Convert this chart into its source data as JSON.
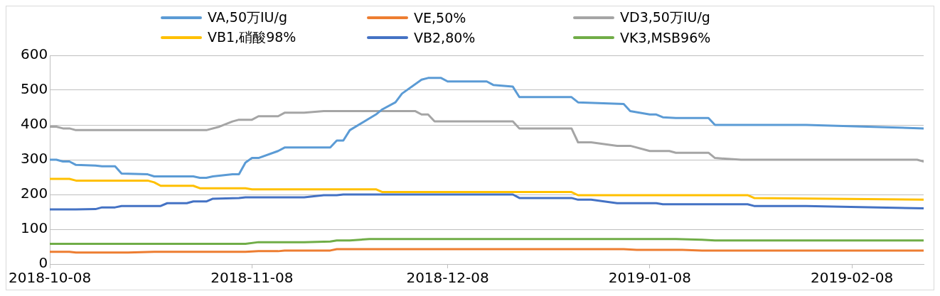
{
  "chart_data": {
    "type": "line",
    "xlim": [
      "2018-10-08",
      "2019-02-19"
    ],
    "xticks": [
      "2018-10-08",
      "2018-11-08",
      "2018-12-08",
      "2019-01-08",
      "2019-02-08"
    ],
    "ylim": [
      0,
      600
    ],
    "yticks": [
      0,
      100,
      200,
      300,
      400,
      500,
      600
    ],
    "grid": "y",
    "legend": "top",
    "marker": "none",
    "line_style": "solid",
    "series": [
      {
        "name": "VA,50万IU/g",
        "color": "#5b9bd5",
        "x": [
          "2018-10-08",
          "2018-10-09",
          "2018-10-10",
          "2018-10-11",
          "2018-10-12",
          "2018-10-15",
          "2018-10-16",
          "2018-10-18",
          "2018-10-19",
          "2018-10-23",
          "2018-10-24",
          "2018-10-30",
          "2018-10-31",
          "2018-11-01",
          "2018-11-02",
          "2018-11-05",
          "2018-11-06",
          "2018-11-07",
          "2018-11-08",
          "2018-11-09",
          "2018-11-12",
          "2018-11-13",
          "2018-11-20",
          "2018-11-21",
          "2018-11-22",
          "2018-11-23",
          "2018-11-27",
          "2018-11-28",
          "2018-11-30",
          "2018-12-01",
          "2018-12-04",
          "2018-12-05",
          "2018-12-07",
          "2018-12-08",
          "2018-12-14",
          "2018-12-15",
          "2018-12-18",
          "2018-12-19",
          "2018-12-27",
          "2018-12-28",
          "2019-01-04",
          "2019-01-05",
          "2019-01-08",
          "2019-01-09",
          "2019-01-10",
          "2019-01-12",
          "2019-01-17",
          "2019-01-18",
          "2019-02-01",
          "2019-02-19"
        ],
        "values": [
          300,
          300,
          295,
          295,
          285,
          283,
          281,
          281,
          260,
          258,
          252,
          252,
          248,
          248,
          252,
          258,
          258,
          292,
          305,
          305,
          325,
          335,
          335,
          355,
          355,
          385,
          430,
          445,
          465,
          490,
          530,
          535,
          535,
          525,
          525,
          515,
          510,
          480,
          480,
          465,
          460,
          440,
          430,
          430,
          422,
          420,
          420,
          400,
          400,
          390
        ]
      },
      {
        "name": "VE,50%",
        "color": "#ed7d31",
        "x": [
          "2018-10-08",
          "2018-10-11",
          "2018-10-12",
          "2018-10-20",
          "2018-10-24",
          "2018-11-07",
          "2018-11-09",
          "2018-11-12",
          "2018-11-13",
          "2018-11-20",
          "2018-11-21",
          "2019-01-04",
          "2019-01-06",
          "2019-01-13",
          "2019-01-16",
          "2019-02-19"
        ],
        "values": [
          35,
          35,
          33,
          33,
          35,
          35,
          37,
          37,
          39,
          39,
          43,
          43,
          41,
          41,
          39,
          39
        ]
      },
      {
        "name": "VD3,50万IU/g",
        "color": "#a5a5a5",
        "x": [
          "2018-10-08",
          "2018-10-09",
          "2018-10-10",
          "2018-10-11",
          "2018-10-12",
          "2018-11-01",
          "2018-11-03",
          "2018-11-05",
          "2018-11-06",
          "2018-11-08",
          "2018-11-09",
          "2018-11-12",
          "2018-11-13",
          "2018-11-16",
          "2018-11-19",
          "2018-12-03",
          "2018-12-04",
          "2018-12-05",
          "2018-12-06",
          "2018-12-18",
          "2018-12-19",
          "2018-12-27",
          "2018-12-28",
          "2018-12-30",
          "2019-01-03",
          "2019-01-05",
          "2019-01-08",
          "2019-01-11",
          "2019-01-12",
          "2019-01-17",
          "2019-01-18",
          "2019-01-22",
          "2019-02-18",
          "2019-02-19"
        ],
        "values": [
          395,
          395,
          390,
          390,
          385,
          385,
          395,
          410,
          415,
          415,
          425,
          425,
          435,
          435,
          440,
          440,
          430,
          430,
          410,
          410,
          390,
          390,
          350,
          350,
          340,
          340,
          325,
          325,
          320,
          320,
          305,
          300,
          300,
          295
        ]
      },
      {
        "name": "VB1,硝酸98%",
        "color": "#ffc000",
        "x": [
          "2018-10-08",
          "2018-10-11",
          "2018-10-12",
          "2018-10-23",
          "2018-10-24",
          "2018-10-25",
          "2018-10-30",
          "2018-10-31",
          "2018-11-07",
          "2018-11-08",
          "2018-11-27",
          "2018-11-28",
          "2018-12-27",
          "2018-12-28",
          "2019-01-23",
          "2019-01-24",
          "2019-02-19"
        ],
        "values": [
          245,
          245,
          240,
          240,
          235,
          225,
          225,
          218,
          218,
          215,
          215,
          207,
          207,
          198,
          198,
          190,
          185
        ]
      },
      {
        "name": "VB2,80%",
        "color": "#4472c4",
        "x": [
          "2018-10-08",
          "2018-10-12",
          "2018-10-15",
          "2018-10-16",
          "2018-10-18",
          "2018-10-19",
          "2018-10-25",
          "2018-10-26",
          "2018-10-29",
          "2018-10-30",
          "2018-11-01",
          "2018-11-02",
          "2018-11-06",
          "2018-11-07",
          "2018-11-16",
          "2018-11-19",
          "2018-11-21",
          "2018-11-22",
          "2018-12-18",
          "2018-12-19",
          "2018-12-27",
          "2018-12-28",
          "2018-12-30",
          "2019-01-03",
          "2019-01-09",
          "2019-01-10",
          "2019-01-23",
          "2019-01-24",
          "2019-02-01",
          "2019-02-19"
        ],
        "values": [
          157,
          157,
          158,
          163,
          163,
          167,
          167,
          175,
          175,
          180,
          180,
          188,
          190,
          192,
          192,
          198,
          198,
          200,
          200,
          190,
          190,
          185,
          185,
          175,
          175,
          172,
          172,
          167,
          167,
          160
        ]
      },
      {
        "name": "VK3,MSB96%",
        "color": "#70ad47",
        "x": [
          "2018-10-08",
          "2018-11-07",
          "2018-11-09",
          "2018-11-16",
          "2018-11-20",
          "2018-11-21",
          "2018-11-23",
          "2018-11-26",
          "2019-01-12",
          "2019-01-16",
          "2019-01-18",
          "2019-02-19"
        ],
        "values": [
          58,
          58,
          63,
          63,
          65,
          68,
          68,
          72,
          72,
          70,
          68,
          68
        ]
      }
    ]
  }
}
